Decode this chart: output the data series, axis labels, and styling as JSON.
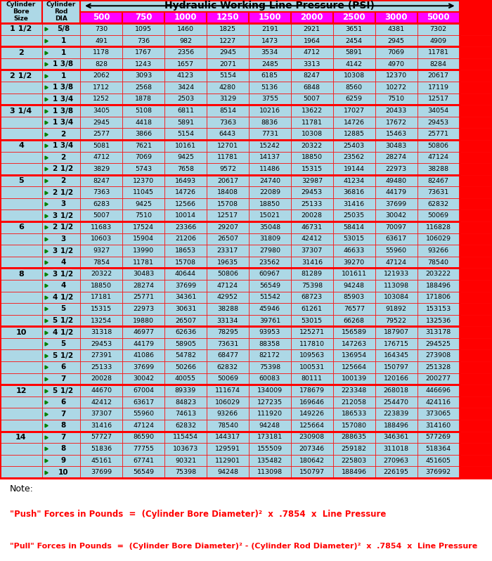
{
  "title": "Hydraulic Working Line Pressure (PSI)",
  "col_headers": [
    "500",
    "750",
    "1000",
    "1250",
    "1500",
    "2000",
    "2500",
    "3000",
    "5000"
  ],
  "rows": [
    [
      "1 1/2",
      "5/8",
      730,
      1095,
      1460,
      1825,
      2191,
      2921,
      3651,
      4381,
      7302
    ],
    [
      "",
      "1",
      491,
      736,
      982,
      1227,
      1473,
      1964,
      2454,
      2945,
      4909
    ],
    [
      "2",
      "1",
      1178,
      1767,
      2356,
      2945,
      3534,
      4712,
      5891,
      7069,
      11781
    ],
    [
      "",
      "1 3/8",
      828,
      1243,
      1657,
      2071,
      2485,
      3313,
      4142,
      4970,
      8284
    ],
    [
      "2 1/2",
      "1",
      2062,
      3093,
      4123,
      5154,
      6185,
      8247,
      10308,
      12370,
      20617
    ],
    [
      "",
      "1 3/8",
      1712,
      2568,
      3424,
      4280,
      5136,
      6848,
      8560,
      10272,
      17119
    ],
    [
      "",
      "1 3/4",
      1252,
      1878,
      2503,
      3129,
      3755,
      5007,
      6259,
      7510,
      12517
    ],
    [
      "3 1/4",
      "1 3/8",
      3405,
      5108,
      6811,
      8514,
      10216,
      13622,
      17027,
      20433,
      34054
    ],
    [
      "",
      "1 3/4",
      2945,
      4418,
      5891,
      7363,
      8836,
      11781,
      14726,
      17672,
      29453
    ],
    [
      "",
      "2",
      2577,
      3866,
      5154,
      6443,
      7731,
      10308,
      12885,
      15463,
      25771
    ],
    [
      "4",
      "1 3/4",
      5081,
      7621,
      10161,
      12701,
      15242,
      20322,
      25403,
      30483,
      50806
    ],
    [
      "",
      "2",
      4712,
      7069,
      9425,
      11781,
      14137,
      18850,
      23562,
      28274,
      47124
    ],
    [
      "",
      "2 1/2",
      3829,
      5743,
      7658,
      9572,
      11486,
      15315,
      19144,
      22973,
      38288
    ],
    [
      "5",
      "2",
      8247,
      12370,
      16493,
      20617,
      24740,
      32987,
      41234,
      49480,
      82467
    ],
    [
      "",
      "2 1/2",
      7363,
      11045,
      14726,
      18408,
      22089,
      29453,
      36816,
      44179,
      73631
    ],
    [
      "",
      "3",
      6283,
      9425,
      12566,
      15708,
      18850,
      25133,
      31416,
      37699,
      62832
    ],
    [
      "",
      "3 1/2",
      5007,
      7510,
      10014,
      12517,
      15021,
      20028,
      25035,
      30042,
      50069
    ],
    [
      "6",
      "2 1/2",
      11683,
      17524,
      23366,
      29207,
      35048,
      46731,
      58414,
      70097,
      116828
    ],
    [
      "",
      "3",
      10603,
      15904,
      21206,
      26507,
      31809,
      42412,
      53015,
      63617,
      106029
    ],
    [
      "",
      "3 1/2",
      9327,
      13990,
      18653,
      23317,
      27980,
      37307,
      46633,
      55960,
      93266
    ],
    [
      "",
      "4",
      7854,
      11781,
      15708,
      19635,
      23562,
      31416,
      39270,
      47124,
      78540
    ],
    [
      "8",
      "3 1/2",
      20322,
      30483,
      40644,
      50806,
      60967,
      81289,
      101611,
      121933,
      203222
    ],
    [
      "",
      "4",
      18850,
      28274,
      37699,
      47124,
      56549,
      75398,
      94248,
      113098,
      188496
    ],
    [
      "",
      "4 1/2",
      17181,
      25771,
      34361,
      42952,
      51542,
      68723,
      85903,
      103084,
      171806
    ],
    [
      "",
      "5",
      15315,
      22973,
      30631,
      38288,
      45946,
      61261,
      76577,
      91892,
      153153
    ],
    [
      "",
      "5 1/2",
      13254,
      19880,
      26507,
      33134,
      39761,
      53015,
      66268,
      79522,
      132536
    ],
    [
      "10",
      "4 1/2",
      31318,
      46977,
      62636,
      78295,
      93953,
      125271,
      156589,
      187907,
      313178
    ],
    [
      "",
      "5",
      29453,
      44179,
      58905,
      73631,
      88358,
      117810,
      147263,
      176715,
      294525
    ],
    [
      "",
      "5 1/2",
      27391,
      41086,
      54782,
      68477,
      82172,
      109563,
      136954,
      164345,
      273908
    ],
    [
      "",
      "6",
      25133,
      37699,
      50266,
      62832,
      75398,
      100531,
      125664,
      150797,
      251328
    ],
    [
      "",
      "7",
      20028,
      30042,
      40055,
      50069,
      60083,
      80111,
      100139,
      120166,
      200277
    ],
    [
      "12",
      "5 1/2",
      44670,
      67004,
      89339,
      111674,
      134009,
      178679,
      223348,
      268018,
      446696
    ],
    [
      "",
      "6",
      42412,
      63617,
      84823,
      106029,
      127235,
      169646,
      212058,
      254470,
      424116
    ],
    [
      "",
      "7",
      37307,
      55960,
      74613,
      93266,
      111920,
      149226,
      186533,
      223839,
      373065
    ],
    [
      "",
      "8",
      31416,
      47124,
      62832,
      78540,
      94248,
      125664,
      157080,
      188496,
      314160
    ],
    [
      "14",
      "7",
      57727,
      86590,
      115454,
      144317,
      173181,
      230908,
      288635,
      346361,
      577269
    ],
    [
      "",
      "8",
      51836,
      77755,
      103673,
      129591,
      155509,
      207346,
      259182,
      311018,
      518364
    ],
    [
      "",
      "9",
      45161,
      67741,
      90321,
      112901,
      135482,
      180642,
      225803,
      270963,
      451605
    ],
    [
      "",
      "10",
      37699,
      56549,
      75398,
      94248,
      113098,
      150797,
      188496,
      226195,
      376992
    ]
  ],
  "group_starts": [
    0,
    2,
    4,
    7,
    10,
    13,
    17,
    21,
    26,
    31,
    35
  ],
  "bg_light": "#ADD8E6",
  "bg_header_psi": "#FF00FF",
  "bg_right_col": "#FF0000",
  "text_red": "#FF0000",
  "border_color": "#FF0000"
}
